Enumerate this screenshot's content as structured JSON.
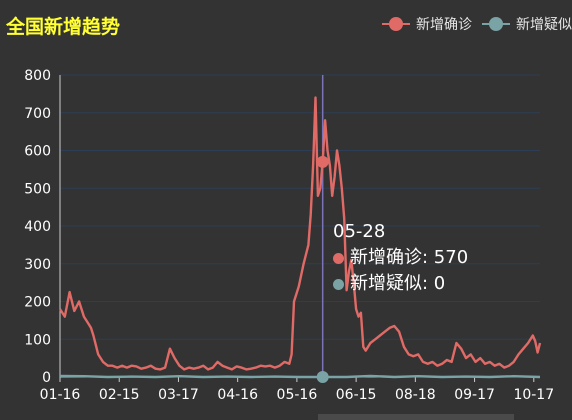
{
  "title": "全国新增趋势",
  "legend": {
    "items": [
      {
        "label": "新增确诊",
        "color": "#e06a66"
      },
      {
        "label": "新增疑似",
        "color": "#7aa3a6"
      }
    ]
  },
  "tooltip": {
    "date": "05-28",
    "rows": [
      {
        "series": "新增确诊",
        "value": "570",
        "text": "新增确诊: 570",
        "color": "#e06a66"
      },
      {
        "series": "新增疑似",
        "value": "0",
        "text": "新增疑似: 0",
        "color": "#7aa3a6"
      }
    ]
  },
  "chart_data": {
    "type": "line",
    "ylim": [
      0,
      800
    ],
    "yticks": [
      0,
      100,
      200,
      300,
      400,
      500,
      600,
      700,
      800
    ],
    "xticks": [
      "01-16",
      "02-15",
      "03-17",
      "04-16",
      "05-16",
      "06-15",
      "08-18",
      "09-17",
      "10-17"
    ],
    "grid": true,
    "legend_position": "top-right",
    "highlight": {
      "x": "05-28",
      "values": [
        570,
        0
      ]
    },
    "series": [
      {
        "name": "新增确诊",
        "color": "#e06a66",
        "points": [
          [
            0,
            180
          ],
          [
            2,
            160
          ],
          [
            4,
            225
          ],
          [
            6,
            175
          ],
          [
            8,
            200
          ],
          [
            10,
            160
          ],
          [
            12,
            140
          ],
          [
            13,
            130
          ],
          [
            14,
            110
          ],
          [
            16,
            60
          ],
          [
            18,
            40
          ],
          [
            20,
            30
          ],
          [
            22,
            30
          ],
          [
            24,
            25
          ],
          [
            26,
            30
          ],
          [
            28,
            25
          ],
          [
            30,
            30
          ],
          [
            32,
            28
          ],
          [
            34,
            22
          ],
          [
            36,
            25
          ],
          [
            38,
            30
          ],
          [
            40,
            22
          ],
          [
            42,
            20
          ],
          [
            44,
            25
          ],
          [
            46,
            75
          ],
          [
            48,
            50
          ],
          [
            50,
            30
          ],
          [
            52,
            20
          ],
          [
            54,
            25
          ],
          [
            56,
            22
          ],
          [
            58,
            25
          ],
          [
            60,
            30
          ],
          [
            62,
            20
          ],
          [
            64,
            25
          ],
          [
            66,
            40
          ],
          [
            68,
            30
          ],
          [
            70,
            25
          ],
          [
            72,
            20
          ],
          [
            74,
            28
          ],
          [
            76,
            25
          ],
          [
            78,
            20
          ],
          [
            80,
            22
          ],
          [
            82,
            25
          ],
          [
            84,
            30
          ],
          [
            86,
            28
          ],
          [
            88,
            30
          ],
          [
            90,
            25
          ],
          [
            92,
            30
          ],
          [
            94,
            40
          ],
          [
            96,
            35
          ],
          [
            97,
            60
          ],
          [
            98,
            200
          ],
          [
            100,
            240
          ],
          [
            102,
            300
          ],
          [
            104,
            350
          ],
          [
            105,
            430
          ],
          [
            106,
            560
          ],
          [
            107,
            740
          ],
          [
            108,
            480
          ],
          [
            109,
            500
          ],
          [
            110,
            570
          ],
          [
            111,
            680
          ],
          [
            112,
            600
          ],
          [
            113,
            560
          ],
          [
            114,
            480
          ],
          [
            115,
            530
          ],
          [
            116,
            600
          ],
          [
            117,
            560
          ],
          [
            118,
            500
          ],
          [
            119,
            420
          ],
          [
            120,
            230
          ],
          [
            121,
            280
          ],
          [
            122,
            310
          ],
          [
            123,
            250
          ],
          [
            124,
            180
          ],
          [
            125,
            160
          ],
          [
            126,
            170
          ],
          [
            127,
            80
          ],
          [
            128,
            70
          ],
          [
            130,
            90
          ],
          [
            132,
            100
          ],
          [
            134,
            110
          ],
          [
            136,
            120
          ],
          [
            138,
            130
          ],
          [
            140,
            135
          ],
          [
            142,
            120
          ],
          [
            144,
            80
          ],
          [
            146,
            60
          ],
          [
            148,
            55
          ],
          [
            150,
            60
          ],
          [
            152,
            40
          ],
          [
            154,
            35
          ],
          [
            156,
            40
          ],
          [
            158,
            30
          ],
          [
            160,
            35
          ],
          [
            162,
            45
          ],
          [
            164,
            40
          ],
          [
            166,
            90
          ],
          [
            168,
            75
          ],
          [
            170,
            50
          ],
          [
            172,
            60
          ],
          [
            174,
            40
          ],
          [
            176,
            50
          ],
          [
            178,
            35
          ],
          [
            180,
            40
          ],
          [
            182,
            30
          ],
          [
            184,
            35
          ],
          [
            186,
            25
          ],
          [
            188,
            30
          ],
          [
            190,
            40
          ],
          [
            192,
            60
          ],
          [
            194,
            75
          ],
          [
            196,
            90
          ],
          [
            198,
            110
          ],
          [
            199,
            95
          ],
          [
            200,
            65
          ],
          [
            201,
            90
          ]
        ]
      },
      {
        "name": "新增疑似",
        "color": "#7aa3a6",
        "points": [
          [
            0,
            3
          ],
          [
            10,
            2
          ],
          [
            20,
            0
          ],
          [
            30,
            1
          ],
          [
            40,
            0
          ],
          [
            50,
            2
          ],
          [
            60,
            0
          ],
          [
            70,
            1
          ],
          [
            80,
            0
          ],
          [
            90,
            1
          ],
          [
            100,
            0
          ],
          [
            110,
            0
          ],
          [
            120,
            0
          ],
          [
            130,
            3
          ],
          [
            140,
            0
          ],
          [
            150,
            2
          ],
          [
            160,
            0
          ],
          [
            170,
            1
          ],
          [
            180,
            0
          ],
          [
            190,
            2
          ],
          [
            201,
            0
          ]
        ]
      }
    ]
  }
}
